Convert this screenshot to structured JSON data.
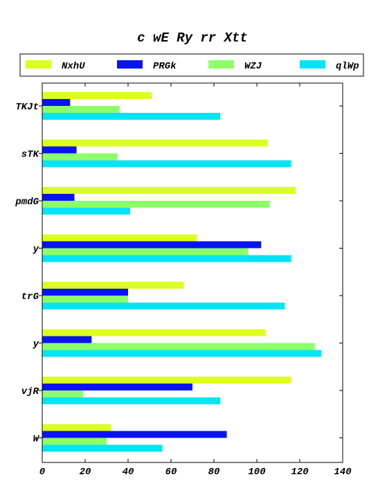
{
  "chart_data": {
    "type": "bar",
    "orientation": "horizontal",
    "title": "c wE Ry rr Xtt",
    "xlabel": "",
    "ylabel": "",
    "xlim": [
      0,
      140
    ],
    "xticks": [
      0,
      20,
      40,
      60,
      80,
      100,
      120,
      140
    ],
    "grid": false,
    "legend_placement": "top",
    "categories": [
      "TKJt",
      "sTK",
      "pmdG",
      "y",
      "trG",
      "y",
      "vjR",
      "W"
    ],
    "series": [
      {
        "name": "NxhU",
        "color": "#ddff1f",
        "values": [
          51,
          105,
          118,
          72,
          66,
          104,
          116,
          32
        ]
      },
      {
        "name": "PRGk",
        "color": "#0a14f0",
        "values": [
          13,
          16,
          15,
          102,
          40,
          23,
          70,
          86
        ]
      },
      {
        "name": "WZJ",
        "color": "#8dff6a",
        "values": [
          36,
          35,
          106,
          96,
          40,
          127,
          19,
          30
        ]
      },
      {
        "name": "qlWp",
        "color": "#05e4f5",
        "values": [
          83,
          116,
          41,
          116,
          113,
          130,
          83,
          56
        ]
      }
    ]
  }
}
